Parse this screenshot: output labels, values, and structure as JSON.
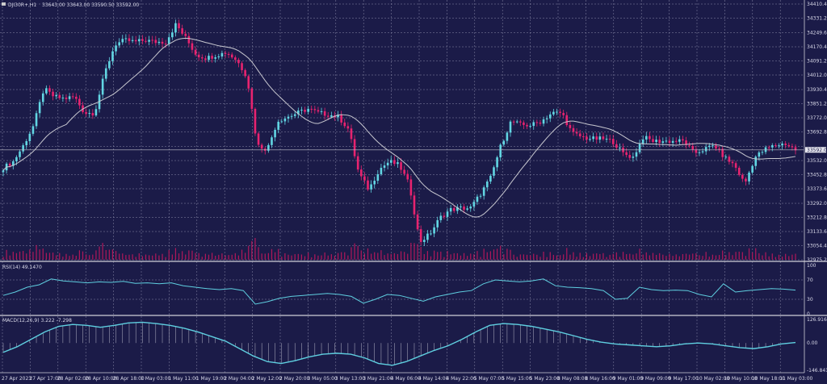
{
  "header": {
    "symbol_timeframe": "DJI30R+,H1",
    "ohlc": "33643.00 33643.00 33590.50 33592.00"
  },
  "colors": {
    "background": "#1b1b48",
    "bull": "#62d6e3",
    "bear": "#e8236f",
    "ma": "#c8c8d0",
    "rsi": "#5fcfe0",
    "macd": "#5fcfe0",
    "grid": "#8a8aa8",
    "volume": "#b0185a"
  },
  "chart_data": [
    {
      "type": "candlestick",
      "title": "DJI30R+,H1",
      "price_axis_ticks": [
        "34410.40",
        "34331.20",
        "34249.60",
        "34170.40",
        "34091.20",
        "34012.00",
        "33930.40",
        "33851.20",
        "33772.00",
        "33692.80",
        "33611.20",
        "33532.00",
        "33452.80",
        "33373.60",
        "33292.00",
        "33212.80",
        "33133.60",
        "33054.40",
        "32975.20"
      ],
      "ylim": [
        32975.2,
        34410.4
      ],
      "current_price": "33592.00",
      "time_axis_labels": [
        "27 Apr 2023",
        "27 Apr 17:00",
        "28 Apr 02:00",
        "28 Apr 10:00",
        "28 Apr 18:00",
        "1 May 03:00",
        "1 May 11:00",
        "1 May 19:00",
        "2 May 04:00",
        "2 May 12:00",
        "2 May 20:00",
        "3 May 05:00",
        "3 May 13:00",
        "3 May 21:00",
        "4 May 06:00",
        "4 May 14:00",
        "4 May 22:00",
        "5 May 07:00",
        "5 May 15:00",
        "5 May 23:00",
        "8 May 08:00",
        "8 May 16:00",
        "9 May 01:00",
        "9 May 09:00",
        "9 May 17:00",
        "10 May 02:00",
        "10 May 10:00",
        "10 May 18:00",
        "11 May 03:00"
      ],
      "close_path": [
        33491,
        33527,
        33618,
        33731,
        33935,
        33890,
        33880,
        33890,
        33799,
        33799,
        34025,
        34184,
        34207,
        34198,
        34207,
        34198,
        34198,
        34297,
        34216,
        34125,
        34107,
        34125,
        34139,
        34094,
        34003,
        33618,
        33595,
        33754,
        33777,
        33800,
        33822,
        33800,
        33790,
        33777,
        33708,
        33460,
        33369,
        33482,
        33527,
        33505,
        33392,
        33075,
        33120,
        33211,
        33256,
        33265,
        33265,
        33346,
        33437,
        33618,
        33754,
        33731,
        33731,
        33754,
        33799,
        33799,
        33686,
        33663,
        33654,
        33654,
        33641,
        33573,
        33550,
        33663,
        33641,
        33641,
        33641,
        33641,
        33573,
        33595,
        33618,
        33550,
        33505,
        33400,
        33550,
        33595,
        33618,
        33627,
        33592
      ],
      "grid": true,
      "grid_style": "dashed",
      "grid_color": "#8a8aa8",
      "ma_series": "moving average"
    },
    {
      "type": "line",
      "title": "RSI(14) 49.1470",
      "ticks": [
        "100",
        "70",
        "30",
        "0"
      ],
      "ylim": [
        0,
        100
      ],
      "values": [
        38,
        45,
        55,
        60,
        72,
        68,
        66,
        64,
        66,
        65,
        67,
        63,
        64,
        62,
        64,
        58,
        55,
        52,
        50,
        52,
        48,
        20,
        25,
        32,
        36,
        38,
        40,
        42,
        40,
        36,
        22,
        30,
        40,
        38,
        32,
        26,
        35,
        40,
        45,
        48,
        62,
        70,
        68,
        66,
        68,
        72,
        58,
        55,
        54,
        52,
        48,
        30,
        32,
        55,
        50,
        48,
        49,
        48,
        40,
        35,
        62,
        45,
        48,
        50,
        52,
        51,
        49
      ]
    },
    {
      "type": "line",
      "title": "MACD(12,26,9) 3.222 -7.298",
      "ticks": [
        "126.916",
        "0.00",
        "-146.841"
      ],
      "ylim": [
        -146.841,
        126.916
      ],
      "values": [
        -50,
        -20,
        20,
        60,
        90,
        100,
        95,
        85,
        95,
        108,
        112,
        105,
        95,
        80,
        60,
        35,
        10,
        -30,
        -70,
        -100,
        -110,
        -95,
        -75,
        -60,
        -55,
        -60,
        -80,
        -110,
        -120,
        -100,
        -70,
        -40,
        -15,
        20,
        60,
        95,
        105,
        100,
        90,
        75,
        60,
        40,
        20,
        5,
        -5,
        -10,
        -15,
        -20,
        -15,
        -5,
        0,
        -5,
        -15,
        -25,
        -30,
        -20,
        -5,
        3
      ]
    }
  ]
}
